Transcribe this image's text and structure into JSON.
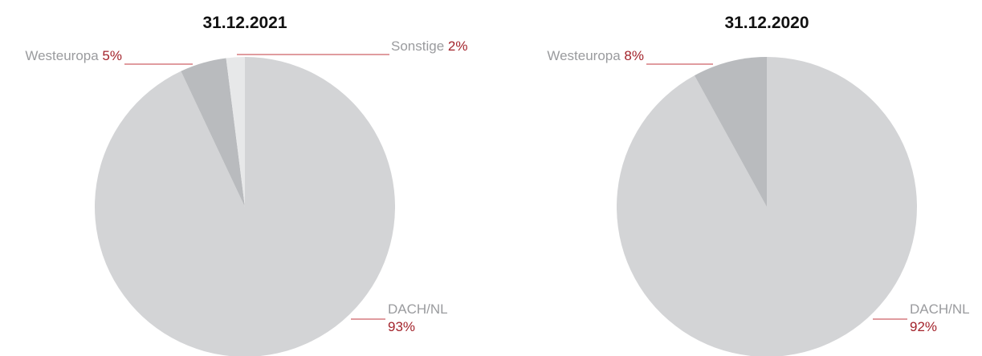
{
  "chart_data": [
    {
      "type": "pie",
      "title": "31.12.2021",
      "categories": [
        "DACH/NL",
        "Westeuropa",
        "Sonstige"
      ],
      "values": [
        93,
        5,
        2
      ],
      "value_labels": [
        "93%",
        "5%",
        "2%"
      ],
      "colors": [
        "#d3d4d6",
        "#b9bbbe",
        "#e7e8e9"
      ]
    },
    {
      "type": "pie",
      "title": "31.12.2020",
      "categories": [
        "DACH/NL",
        "Westeuropa"
      ],
      "values": [
        92,
        8
      ],
      "value_labels": [
        "92%",
        "8%"
      ],
      "colors": [
        "#d3d4d6",
        "#b9bbbe"
      ]
    }
  ]
}
